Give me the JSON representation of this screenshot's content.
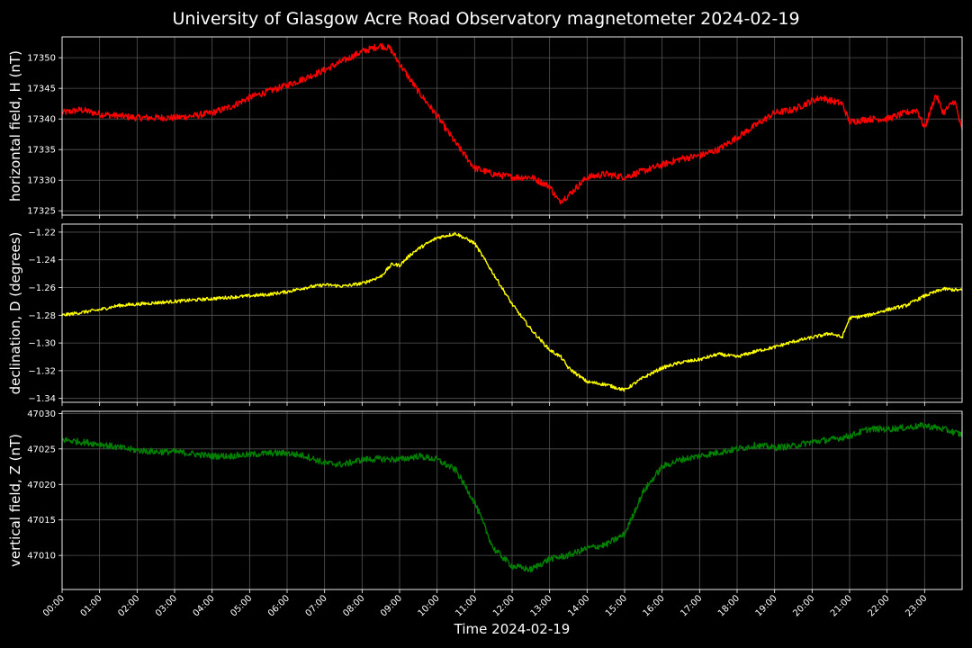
{
  "title": "University of Glasgow Acre Road Observatory magnetometer 2024-02-19",
  "xlabel": "Time 2024-02-19",
  "colors": {
    "background": "#000000",
    "grid": "#555555",
    "H": "#ff0000",
    "D": "#ffff00",
    "Z": "#008000"
  },
  "chart_data": [
    {
      "type": "line",
      "ylabel": "horizontal field, H (nT)",
      "color": "#ff0000",
      "ylim": [
        17324.3,
        17353.4
      ],
      "yticks": [
        17325,
        17330,
        17335,
        17340,
        17345,
        17350
      ],
      "yticklabels": [
        "17325",
        "17330",
        "17335",
        "17340",
        "17345",
        "17350"
      ],
      "xlim": [
        0,
        24
      ],
      "noise": 0.55,
      "x": [
        0.0,
        0.5,
        1.0,
        1.5,
        2.0,
        2.5,
        3.0,
        3.5,
        4.0,
        4.5,
        5.0,
        5.5,
        6.0,
        6.5,
        7.0,
        7.5,
        8.0,
        8.5,
        8.75,
        9.0,
        9.5,
        10.0,
        10.5,
        11.0,
        11.5,
        12.0,
        12.5,
        13.0,
        13.25,
        13.5,
        14.0,
        14.5,
        15.0,
        15.5,
        16.0,
        16.5,
        17.0,
        17.5,
        18.0,
        18.5,
        19.0,
        19.5,
        20.0,
        20.25,
        20.5,
        20.8,
        21.0,
        21.5,
        22.0,
        22.5,
        22.8,
        23.0,
        23.3,
        23.5,
        23.8,
        24.0
      ],
      "values": [
        17341.0,
        17341.5,
        17340.8,
        17340.5,
        17340.2,
        17340.2,
        17340.2,
        17340.5,
        17341.0,
        17342.0,
        17343.5,
        17344.5,
        17345.5,
        17346.7,
        17348.0,
        17349.5,
        17351.0,
        17352.0,
        17351.5,
        17349.0,
        17344.5,
        17340.5,
        17336.0,
        17332.0,
        17331.0,
        17330.5,
        17330.5,
        17329.0,
        17326.5,
        17327.5,
        17330.5,
        17331.0,
        17330.5,
        17331.5,
        17332.5,
        17333.5,
        17334.0,
        17335.0,
        17337.0,
        17339.0,
        17341.0,
        17341.5,
        17343.0,
        17343.5,
        17343.0,
        17342.5,
        17339.5,
        17340.0,
        17340.0,
        17341.0,
        17341.5,
        17338.5,
        17344.0,
        17341.0,
        17343.0,
        17338.0
      ]
    },
    {
      "type": "line",
      "ylabel": "declination, D (degrees)",
      "color": "#ffff00",
      "ylim": [
        -1.3428,
        -1.2142
      ],
      "yticks": [
        -1.34,
        -1.32,
        -1.3,
        -1.28,
        -1.26,
        -1.24,
        -1.22
      ],
      "yticklabels": [
        "−1.34",
        "−1.32",
        "−1.30",
        "−1.28",
        "−1.26",
        "−1.24",
        "−1.22"
      ],
      "xlim": [
        0,
        24
      ],
      "noise": 0.0012,
      "x": [
        0.0,
        0.5,
        1.0,
        1.5,
        2.0,
        2.5,
        3.0,
        3.5,
        4.0,
        4.5,
        5.0,
        5.5,
        6.0,
        6.5,
        7.0,
        7.5,
        8.0,
        8.5,
        8.8,
        9.0,
        9.3,
        9.5,
        10.0,
        10.5,
        11.0,
        11.5,
        12.0,
        12.5,
        13.0,
        13.3,
        13.5,
        14.0,
        14.5,
        15.0,
        15.5,
        16.0,
        16.5,
        17.0,
        17.5,
        18.0,
        18.5,
        19.0,
        19.5,
        20.0,
        20.5,
        20.8,
        21.0,
        21.5,
        22.0,
        22.5,
        23.0,
        23.5,
        24.0
      ],
      "values": [
        -1.28,
        -1.278,
        -1.276,
        -1.273,
        -1.272,
        -1.271,
        -1.27,
        -1.269,
        -1.268,
        -1.267,
        -1.266,
        -1.265,
        -1.263,
        -1.26,
        -1.258,
        -1.259,
        -1.257,
        -1.252,
        -1.243,
        -1.244,
        -1.236,
        -1.232,
        -1.224,
        -1.221,
        -1.228,
        -1.25,
        -1.272,
        -1.29,
        -1.305,
        -1.31,
        -1.318,
        -1.328,
        -1.33,
        -1.334,
        -1.325,
        -1.318,
        -1.314,
        -1.312,
        -1.308,
        -1.31,
        -1.306,
        -1.303,
        -1.299,
        -1.296,
        -1.293,
        -1.296,
        -1.282,
        -1.28,
        -1.276,
        -1.273,
        -1.266,
        -1.261,
        -1.262
      ]
    },
    {
      "type": "line",
      "ylabel": "vertical field, Z (nT)",
      "color": "#008000",
      "ylim": [
        47005.2,
        47030.3
      ],
      "yticks": [
        47010,
        47015,
        47020,
        47025,
        47030
      ],
      "yticklabels": [
        "47010",
        "47015",
        "47020",
        "47025",
        "47030"
      ],
      "xlim": [
        0,
        24
      ],
      "noise": 0.45,
      "x": [
        0.0,
        0.5,
        1.0,
        1.5,
        2.0,
        2.5,
        3.0,
        3.5,
        4.0,
        4.5,
        5.0,
        5.5,
        6.0,
        6.5,
        7.0,
        7.5,
        8.0,
        8.5,
        9.0,
        9.5,
        10.0,
        10.5,
        11.0,
        11.5,
        12.0,
        12.5,
        13.0,
        13.5,
        14.0,
        14.5,
        15.0,
        15.5,
        16.0,
        16.5,
        17.0,
        17.5,
        18.0,
        18.5,
        19.0,
        19.5,
        20.0,
        20.5,
        21.0,
        21.5,
        22.0,
        22.5,
        23.0,
        23.5,
        24.0
      ],
      "values": [
        47026.3,
        47026.0,
        47025.7,
        47025.2,
        47024.8,
        47024.6,
        47024.6,
        47024.3,
        47024.0,
        47024.0,
        47024.2,
        47024.4,
        47024.4,
        47024.0,
        47023.0,
        47022.8,
        47023.5,
        47023.6,
        47023.5,
        47024.0,
        47023.5,
        47022.0,
        47017.5,
        47011.0,
        47008.5,
        47008.0,
        47009.5,
        47010.0,
        47011.0,
        47011.5,
        47013.0,
        47019.0,
        47022.5,
        47023.5,
        47024.0,
        47024.5,
        47025.0,
        47025.5,
        47025.2,
        47025.4,
        47026.0,
        47026.3,
        47026.8,
        47027.8,
        47027.8,
        47028.0,
        47028.3,
        47027.8,
        47027.0
      ]
    }
  ],
  "xticks": [
    "00:00",
    "01:00",
    "02:00",
    "03:00",
    "04:00",
    "05:00",
    "06:00",
    "07:00",
    "08:00",
    "09:00",
    "10:00",
    "11:00",
    "12:00",
    "13:00",
    "14:00",
    "15:00",
    "16:00",
    "17:00",
    "18:00",
    "19:00",
    "20:00",
    "21:00",
    "22:00",
    "23:00"
  ]
}
